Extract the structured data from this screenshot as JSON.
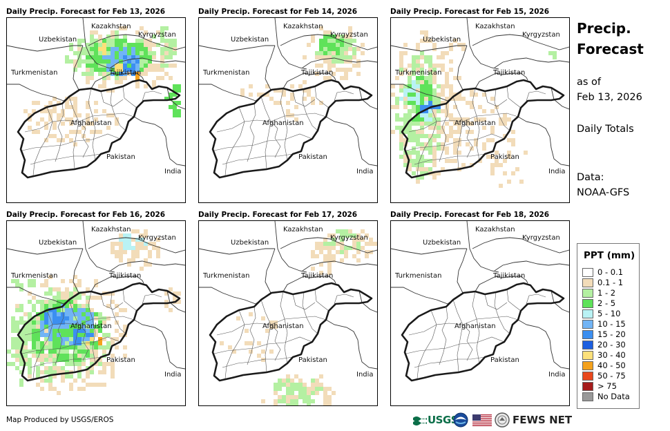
{
  "panels": [
    {
      "title": "Daily Precip. Forecast for Feb 13, 2026"
    },
    {
      "title": "Daily Precip. Forecast for Feb 14, 2026"
    },
    {
      "title": "Daily Precip. Forecast for Feb 15, 2026"
    },
    {
      "title": "Daily Precip. Forecast for Feb 16, 2026"
    },
    {
      "title": "Daily Precip. Forecast for Feb 17, 2026"
    },
    {
      "title": "Daily Precip. Forecast for Feb 18, 2026"
    }
  ],
  "map_labels": {
    "kazakhstan": "Kazakhstan",
    "kyrgyzstan": "Kyrgyzstan",
    "uzbekistan": "Uzbekistan",
    "tajikistan": "Tajikistan",
    "turkmenistan": "Turkmenistan",
    "afghanistan": "Afghanistan",
    "pakistan": "Pakistan",
    "india": "India"
  },
  "side": {
    "title_line1": "Precip.",
    "title_line2": "Forecast",
    "asof_line1": "as of",
    "asof_line2": "Feb 13, 2026",
    "totals": "Daily Totals",
    "data_line1": "Data:",
    "data_line2": "NOAA-GFS"
  },
  "legend": {
    "title": "PPT (mm)",
    "items": [
      {
        "label": "0 - 0.1",
        "color": "#ffffff"
      },
      {
        "label": "0.1 - 1",
        "color": "#f2dcb9"
      },
      {
        "label": "1 - 2",
        "color": "#b4f0a2"
      },
      {
        "label": "2 - 5",
        "color": "#5fe25a"
      },
      {
        "label": "5 - 10",
        "color": "#b9f2f4"
      },
      {
        "label": "10 - 15",
        "color": "#71b4f5"
      },
      {
        "label": "15 - 20",
        "color": "#3c8ff0"
      },
      {
        "label": "20 - 30",
        "color": "#1c5fe0"
      },
      {
        "label": "30 - 40",
        "color": "#fce07a"
      },
      {
        "label": "40 - 50",
        "color": "#f4a11c"
      },
      {
        "label": "50 - 75",
        "color": "#e8471c"
      },
      {
        "label": "> 75",
        "color": "#a51c1c"
      },
      {
        "label": "No Data",
        "color": "#999999"
      }
    ]
  },
  "footer": {
    "credit": "Map Produced by USGS/EROS",
    "usgs": "USGS",
    "fews": "FEWS NET"
  }
}
